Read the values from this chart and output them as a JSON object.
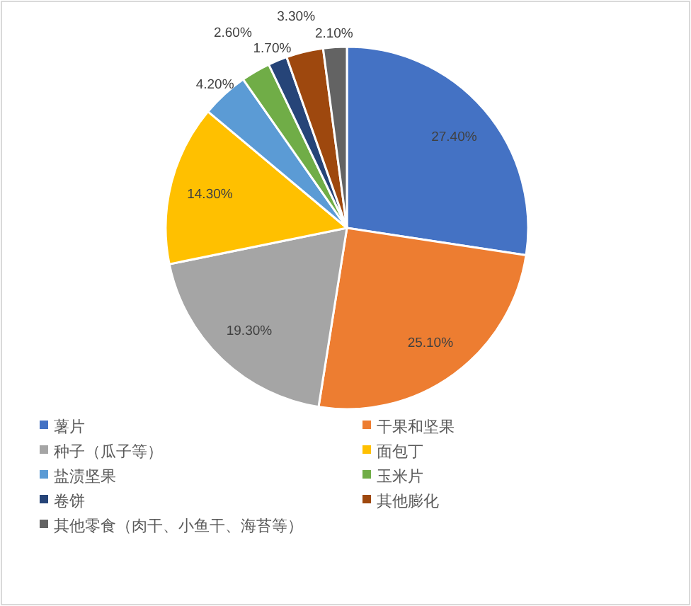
{
  "chart_data": {
    "type": "pie",
    "categories": [
      "薯片",
      "干果和坚果",
      "种子（瓜子等）",
      "面包丁",
      "盐渍坚果",
      "玉米片",
      "卷饼",
      "其他膨化",
      "其他零食（肉干、小鱼干、海苔等）"
    ],
    "values": [
      27.4,
      25.1,
      19.3,
      14.3,
      4.2,
      2.6,
      1.7,
      3.3,
      2.1
    ],
    "colors": [
      "#4472c4",
      "#ed7d31",
      "#a5a5a5",
      "#ffc000",
      "#5b9bd5",
      "#70ad47",
      "#264478",
      "#9e480e",
      "#636363"
    ],
    "value_labels": [
      "27.40%",
      "25.10%",
      "19.30%",
      "14.30%",
      "4.20%",
      "2.60%",
      "1.70%",
      "3.30%",
      "2.10%"
    ],
    "legend": "bottom"
  }
}
